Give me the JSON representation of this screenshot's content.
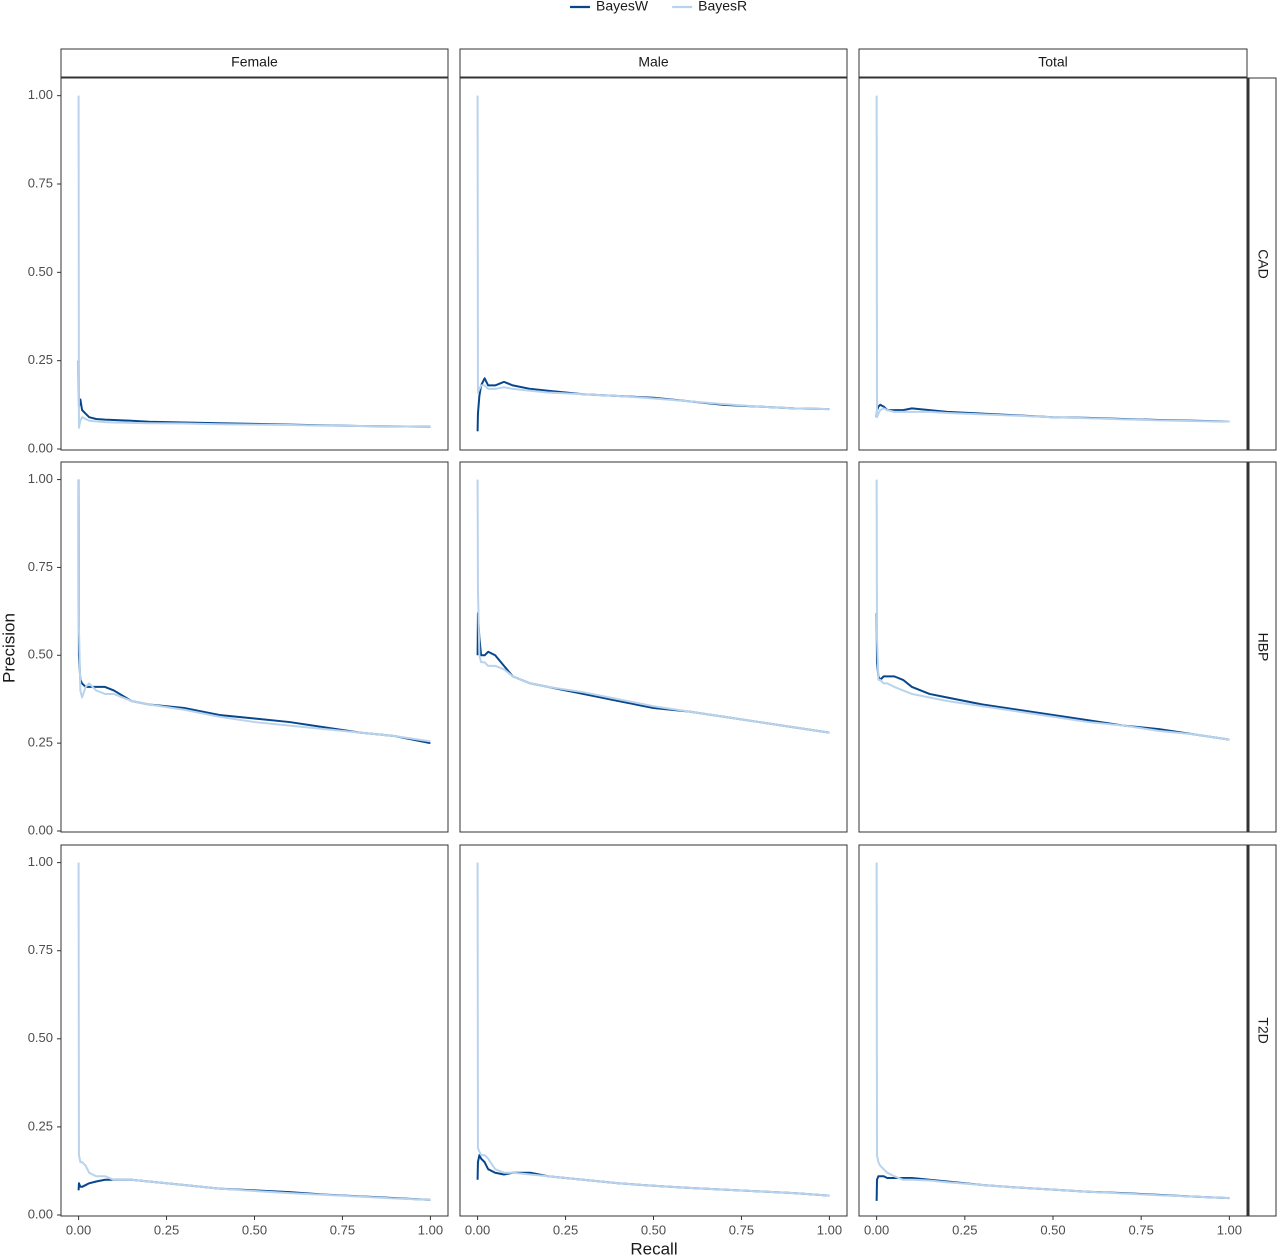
{
  "chart_data": {
    "type": "line",
    "x_label": "Recall",
    "y_label": "Precision",
    "columns": [
      "Female",
      "Male",
      "Total"
    ],
    "rows": [
      "CAD",
      "HBP",
      "T2D"
    ],
    "xlim": [
      -0.05,
      1.05
    ],
    "ylim": [
      0,
      1.05
    ],
    "xticks": [
      {
        "value": 0,
        "label": "0.00"
      },
      {
        "value": 0.25,
        "label": "0.25"
      },
      {
        "value": 0.5,
        "label": "0.50"
      },
      {
        "value": 0.75,
        "label": "0.75"
      },
      {
        "value": 1,
        "label": "1.00"
      }
    ],
    "yticks": [
      {
        "value": 0,
        "label": "0.00"
      },
      {
        "value": 0.25,
        "label": "0.25"
      },
      {
        "value": 0.5,
        "label": "0.50"
      },
      {
        "value": 0.75,
        "label": "0.75"
      },
      {
        "value": 1,
        "label": "1.00"
      }
    ],
    "grid": false,
    "legend": "top",
    "series": [
      {
        "name": "BayesW",
        "color": "#08468c"
      },
      {
        "name": "BayesR",
        "color": "#b9d3ec"
      }
    ],
    "panels": [
      {
        "x": [
          0,
          0.001,
          0.005,
          0.01,
          0.02,
          0.03,
          0.05,
          0.075,
          0.1,
          0.15,
          0.2,
          0.3,
          0.4,
          0.5,
          0.6,
          0.7,
          0.8,
          0.9,
          1.0
        ],
        "series": [
          {
            "values": [
              0.25,
              0.12,
              0.14,
              0.11,
              0.1,
              0.09,
              0.085,
              0.083,
              0.082,
              0.08,
              0.077,
              0.075,
              0.073,
              0.071,
              0.069,
              0.067,
              0.065,
              0.064,
              0.063
            ]
          },
          {
            "values": [
              1.0,
              0.06,
              0.08,
              0.09,
              0.085,
              0.08,
              0.078,
              0.076,
              0.075,
              0.074,
              0.073,
              0.072,
              0.07,
              0.069,
              0.068,
              0.066,
              0.065,
              0.064,
              0.063
            ]
          }
        ]
      },
      {
        "x": [
          0,
          0.001,
          0.005,
          0.01,
          0.02,
          0.03,
          0.05,
          0.075,
          0.1,
          0.15,
          0.2,
          0.3,
          0.4,
          0.5,
          0.6,
          0.7,
          0.8,
          0.9,
          1.0
        ],
        "series": [
          {
            "values": [
              0.05,
              0.1,
              0.15,
              0.18,
              0.2,
              0.18,
              0.18,
              0.19,
              0.18,
              0.17,
              0.165,
              0.155,
              0.15,
              0.145,
              0.135,
              0.125,
              0.12,
              0.115,
              0.113
            ]
          },
          {
            "values": [
              1.0,
              0.16,
              0.17,
              0.18,
              0.18,
              0.17,
              0.17,
              0.175,
              0.17,
              0.165,
              0.16,
              0.155,
              0.15,
              0.143,
              0.135,
              0.127,
              0.12,
              0.115,
              0.113
            ]
          }
        ]
      },
      {
        "x": [
          0,
          0.001,
          0.005,
          0.01,
          0.02,
          0.03,
          0.05,
          0.075,
          0.1,
          0.15,
          0.2,
          0.3,
          0.4,
          0.5,
          0.6,
          0.7,
          0.8,
          0.9,
          1.0
        ],
        "series": [
          {
            "values": [
              0.09,
              0.11,
              0.12,
              0.125,
              0.12,
              0.11,
              0.11,
              0.11,
              0.115,
              0.11,
              0.105,
              0.1,
              0.095,
              0.09,
              0.088,
              0.085,
              0.082,
              0.08,
              0.078
            ]
          },
          {
            "values": [
              1.0,
              0.09,
              0.1,
              0.11,
              0.115,
              0.11,
              0.105,
              0.105,
              0.105,
              0.105,
              0.102,
              0.098,
              0.094,
              0.09,
              0.087,
              0.084,
              0.081,
              0.079,
              0.078
            ]
          }
        ]
      },
      {
        "x": [
          0,
          0.001,
          0.005,
          0.01,
          0.02,
          0.03,
          0.05,
          0.075,
          0.1,
          0.15,
          0.2,
          0.3,
          0.4,
          0.5,
          0.6,
          0.7,
          0.8,
          0.9,
          1.0
        ],
        "series": [
          {
            "values": [
              1.0,
              0.5,
              0.43,
              0.42,
              0.41,
              0.41,
              0.41,
              0.41,
              0.4,
              0.37,
              0.36,
              0.35,
              0.33,
              0.32,
              0.31,
              0.295,
              0.28,
              0.27,
              0.25
            ]
          },
          {
            "values": [
              1.0,
              0.58,
              0.4,
              0.38,
              0.41,
              0.42,
              0.4,
              0.39,
              0.39,
              0.37,
              0.36,
              0.345,
              0.325,
              0.31,
              0.3,
              0.29,
              0.28,
              0.27,
              0.255
            ]
          }
        ]
      },
      {
        "x": [
          0,
          0.001,
          0.005,
          0.01,
          0.02,
          0.03,
          0.05,
          0.075,
          0.1,
          0.15,
          0.2,
          0.3,
          0.4,
          0.5,
          0.6,
          0.7,
          0.8,
          0.9,
          1.0
        ],
        "series": [
          {
            "values": [
              0.5,
              0.62,
              0.55,
              0.5,
              0.5,
              0.51,
              0.5,
              0.47,
              0.44,
              0.42,
              0.41,
              0.39,
              0.37,
              0.35,
              0.34,
              0.325,
              0.31,
              0.295,
              0.28
            ]
          },
          {
            "values": [
              1.0,
              0.69,
              0.5,
              0.48,
              0.48,
              0.47,
              0.47,
              0.46,
              0.44,
              0.42,
              0.41,
              0.395,
              0.375,
              0.355,
              0.34,
              0.325,
              0.31,
              0.295,
              0.28
            ]
          }
        ]
      },
      {
        "x": [
          0,
          0.001,
          0.005,
          0.01,
          0.02,
          0.03,
          0.05,
          0.075,
          0.1,
          0.15,
          0.2,
          0.3,
          0.4,
          0.5,
          0.6,
          0.7,
          0.8,
          0.9,
          1.0
        ],
        "series": [
          {
            "values": [
              0.62,
              0.48,
              0.44,
              0.43,
              0.44,
              0.44,
              0.44,
              0.43,
              0.41,
              0.39,
              0.38,
              0.36,
              0.345,
              0.33,
              0.315,
              0.3,
              0.29,
              0.275,
              0.26
            ]
          },
          {
            "values": [
              1.0,
              0.55,
              0.43,
              0.43,
              0.42,
              0.42,
              0.41,
              0.4,
              0.39,
              0.38,
              0.37,
              0.355,
              0.34,
              0.325,
              0.31,
              0.3,
              0.285,
              0.275,
              0.26
            ]
          }
        ]
      },
      {
        "x": [
          0,
          0.001,
          0.005,
          0.01,
          0.02,
          0.03,
          0.05,
          0.075,
          0.1,
          0.15,
          0.2,
          0.3,
          0.4,
          0.5,
          0.6,
          0.7,
          0.8,
          0.9,
          1.0
        ],
        "series": [
          {
            "values": [
              0.07,
              0.09,
              0.08,
              0.08,
              0.085,
              0.09,
              0.095,
              0.1,
              0.1,
              0.1,
              0.095,
              0.085,
              0.075,
              0.07,
              0.065,
              0.058,
              0.053,
              0.048,
              0.043
            ]
          },
          {
            "values": [
              1.0,
              0.17,
              0.15,
              0.15,
              0.14,
              0.12,
              0.11,
              0.11,
              0.1,
              0.1,
              0.095,
              0.085,
              0.075,
              0.068,
              0.062,
              0.057,
              0.052,
              0.047,
              0.043
            ]
          }
        ]
      },
      {
        "x": [
          0,
          0.001,
          0.005,
          0.01,
          0.02,
          0.03,
          0.05,
          0.075,
          0.1,
          0.15,
          0.2,
          0.3,
          0.4,
          0.5,
          0.6,
          0.7,
          0.8,
          0.9,
          1.0
        ],
        "series": [
          {
            "values": [
              0.1,
              0.15,
              0.17,
              0.16,
              0.15,
              0.13,
              0.12,
              0.115,
              0.12,
              0.12,
              0.11,
              0.1,
              0.09,
              0.083,
              0.077,
              0.072,
              0.067,
              0.062,
              0.055
            ]
          },
          {
            "values": [
              1.0,
              0.19,
              0.18,
              0.17,
              0.17,
              0.16,
              0.13,
              0.12,
              0.12,
              0.115,
              0.11,
              0.1,
              0.09,
              0.083,
              0.077,
              0.072,
              0.067,
              0.062,
              0.055
            ]
          }
        ]
      },
      {
        "x": [
          0,
          0.001,
          0.005,
          0.01,
          0.02,
          0.03,
          0.05,
          0.075,
          0.1,
          0.15,
          0.2,
          0.3,
          0.4,
          0.5,
          0.6,
          0.7,
          0.8,
          0.9,
          1.0
        ],
        "series": [
          {
            "values": [
              0.04,
              0.1,
              0.11,
              0.11,
              0.11,
              0.105,
              0.105,
              0.105,
              0.105,
              0.1,
              0.095,
              0.085,
              0.078,
              0.072,
              0.066,
              0.062,
              0.057,
              0.052,
              0.048
            ]
          },
          {
            "values": [
              1.0,
              0.17,
              0.15,
              0.14,
              0.13,
              0.12,
              0.11,
              0.1,
              0.1,
              0.098,
              0.093,
              0.085,
              0.078,
              0.072,
              0.066,
              0.061,
              0.056,
              0.052,
              0.048
            ]
          }
        ]
      }
    ]
  }
}
